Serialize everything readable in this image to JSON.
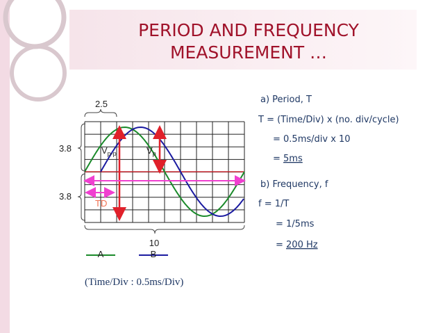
{
  "title": {
    "line1": "PERIOD AND FREQUENCY",
    "line2": "MEASUREMENT …"
  },
  "scope": {
    "div_width": "2.5",
    "amplitude_top": "3.8",
    "amplitude_bottom": "3.8",
    "vpp": {
      "main": "V",
      "sub": "p-p"
    },
    "vp": {
      "main": "V",
      "sub": "p"
    },
    "td": "TD",
    "divisions": "10",
    "legend": [
      "A",
      "B"
    ]
  },
  "caption": "(Time/Div : 0.5ms/Div)",
  "notes": {
    "a_heading": "a)  Period, T",
    "a_formula": "T = (Time/Div) x (no. div/cycle)",
    "a_step": "= 0.5ms/div x 10",
    "a_result_prefix": "= ",
    "a_result": "5ms",
    "b_heading": "b)  Frequency, f",
    "b_formula": "f = 1/T",
    "b_step": "= 1/5ms",
    "b_result_prefix": "= ",
    "b_result": "200 Hz"
  }
}
